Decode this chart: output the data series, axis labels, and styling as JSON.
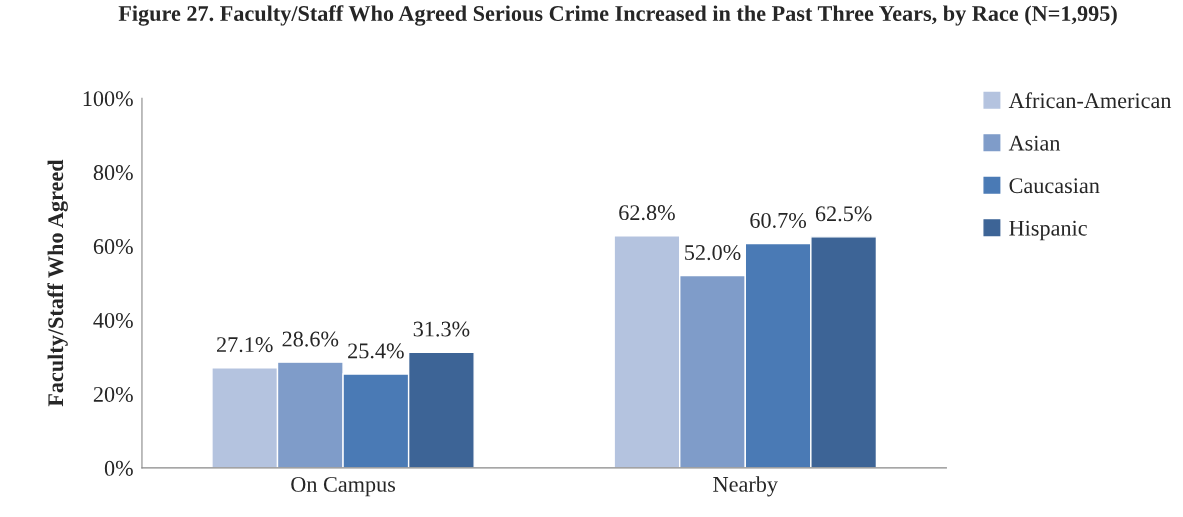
{
  "chart_data": {
    "type": "bar",
    "title": "Figure 27. Faculty/Staff Who Agreed Serious Crime Increased in the Past Three Years, by Race (N=1,995)",
    "ylabel": "Faculty/Staff Who Agreed",
    "categories": [
      "On Campus",
      "Nearby"
    ],
    "series": [
      {
        "name": "African-American",
        "color": "#b4c3df",
        "values": [
          27.1,
          62.8
        ],
        "value_labels": [
          "27.1%",
          "62.8%"
        ]
      },
      {
        "name": "Asian",
        "color": "#7f9cc9",
        "values": [
          28.6,
          52.0
        ],
        "value_labels": [
          "28.6%",
          "52.0%"
        ]
      },
      {
        "name": "Caucasian",
        "color": "#4a7ab5",
        "values": [
          25.4,
          60.7
        ],
        "value_labels": [
          "25.4%",
          "60.7%"
        ]
      },
      {
        "name": "Hispanic",
        "color": "#3d6496",
        "values": [
          31.3,
          62.5
        ],
        "value_labels": [
          "31.3%",
          "62.5%"
        ]
      }
    ],
    "ylim": [
      0,
      100
    ],
    "yticks": [
      {
        "value": 0,
        "label": "0%"
      },
      {
        "value": 20,
        "label": "20%"
      },
      {
        "value": 40,
        "label": "40%"
      },
      {
        "value": 60,
        "label": "60%"
      },
      {
        "value": 80,
        "label": "80%"
      },
      {
        "value": 100,
        "label": "100%"
      }
    ],
    "grid": false,
    "legend": "right"
  }
}
